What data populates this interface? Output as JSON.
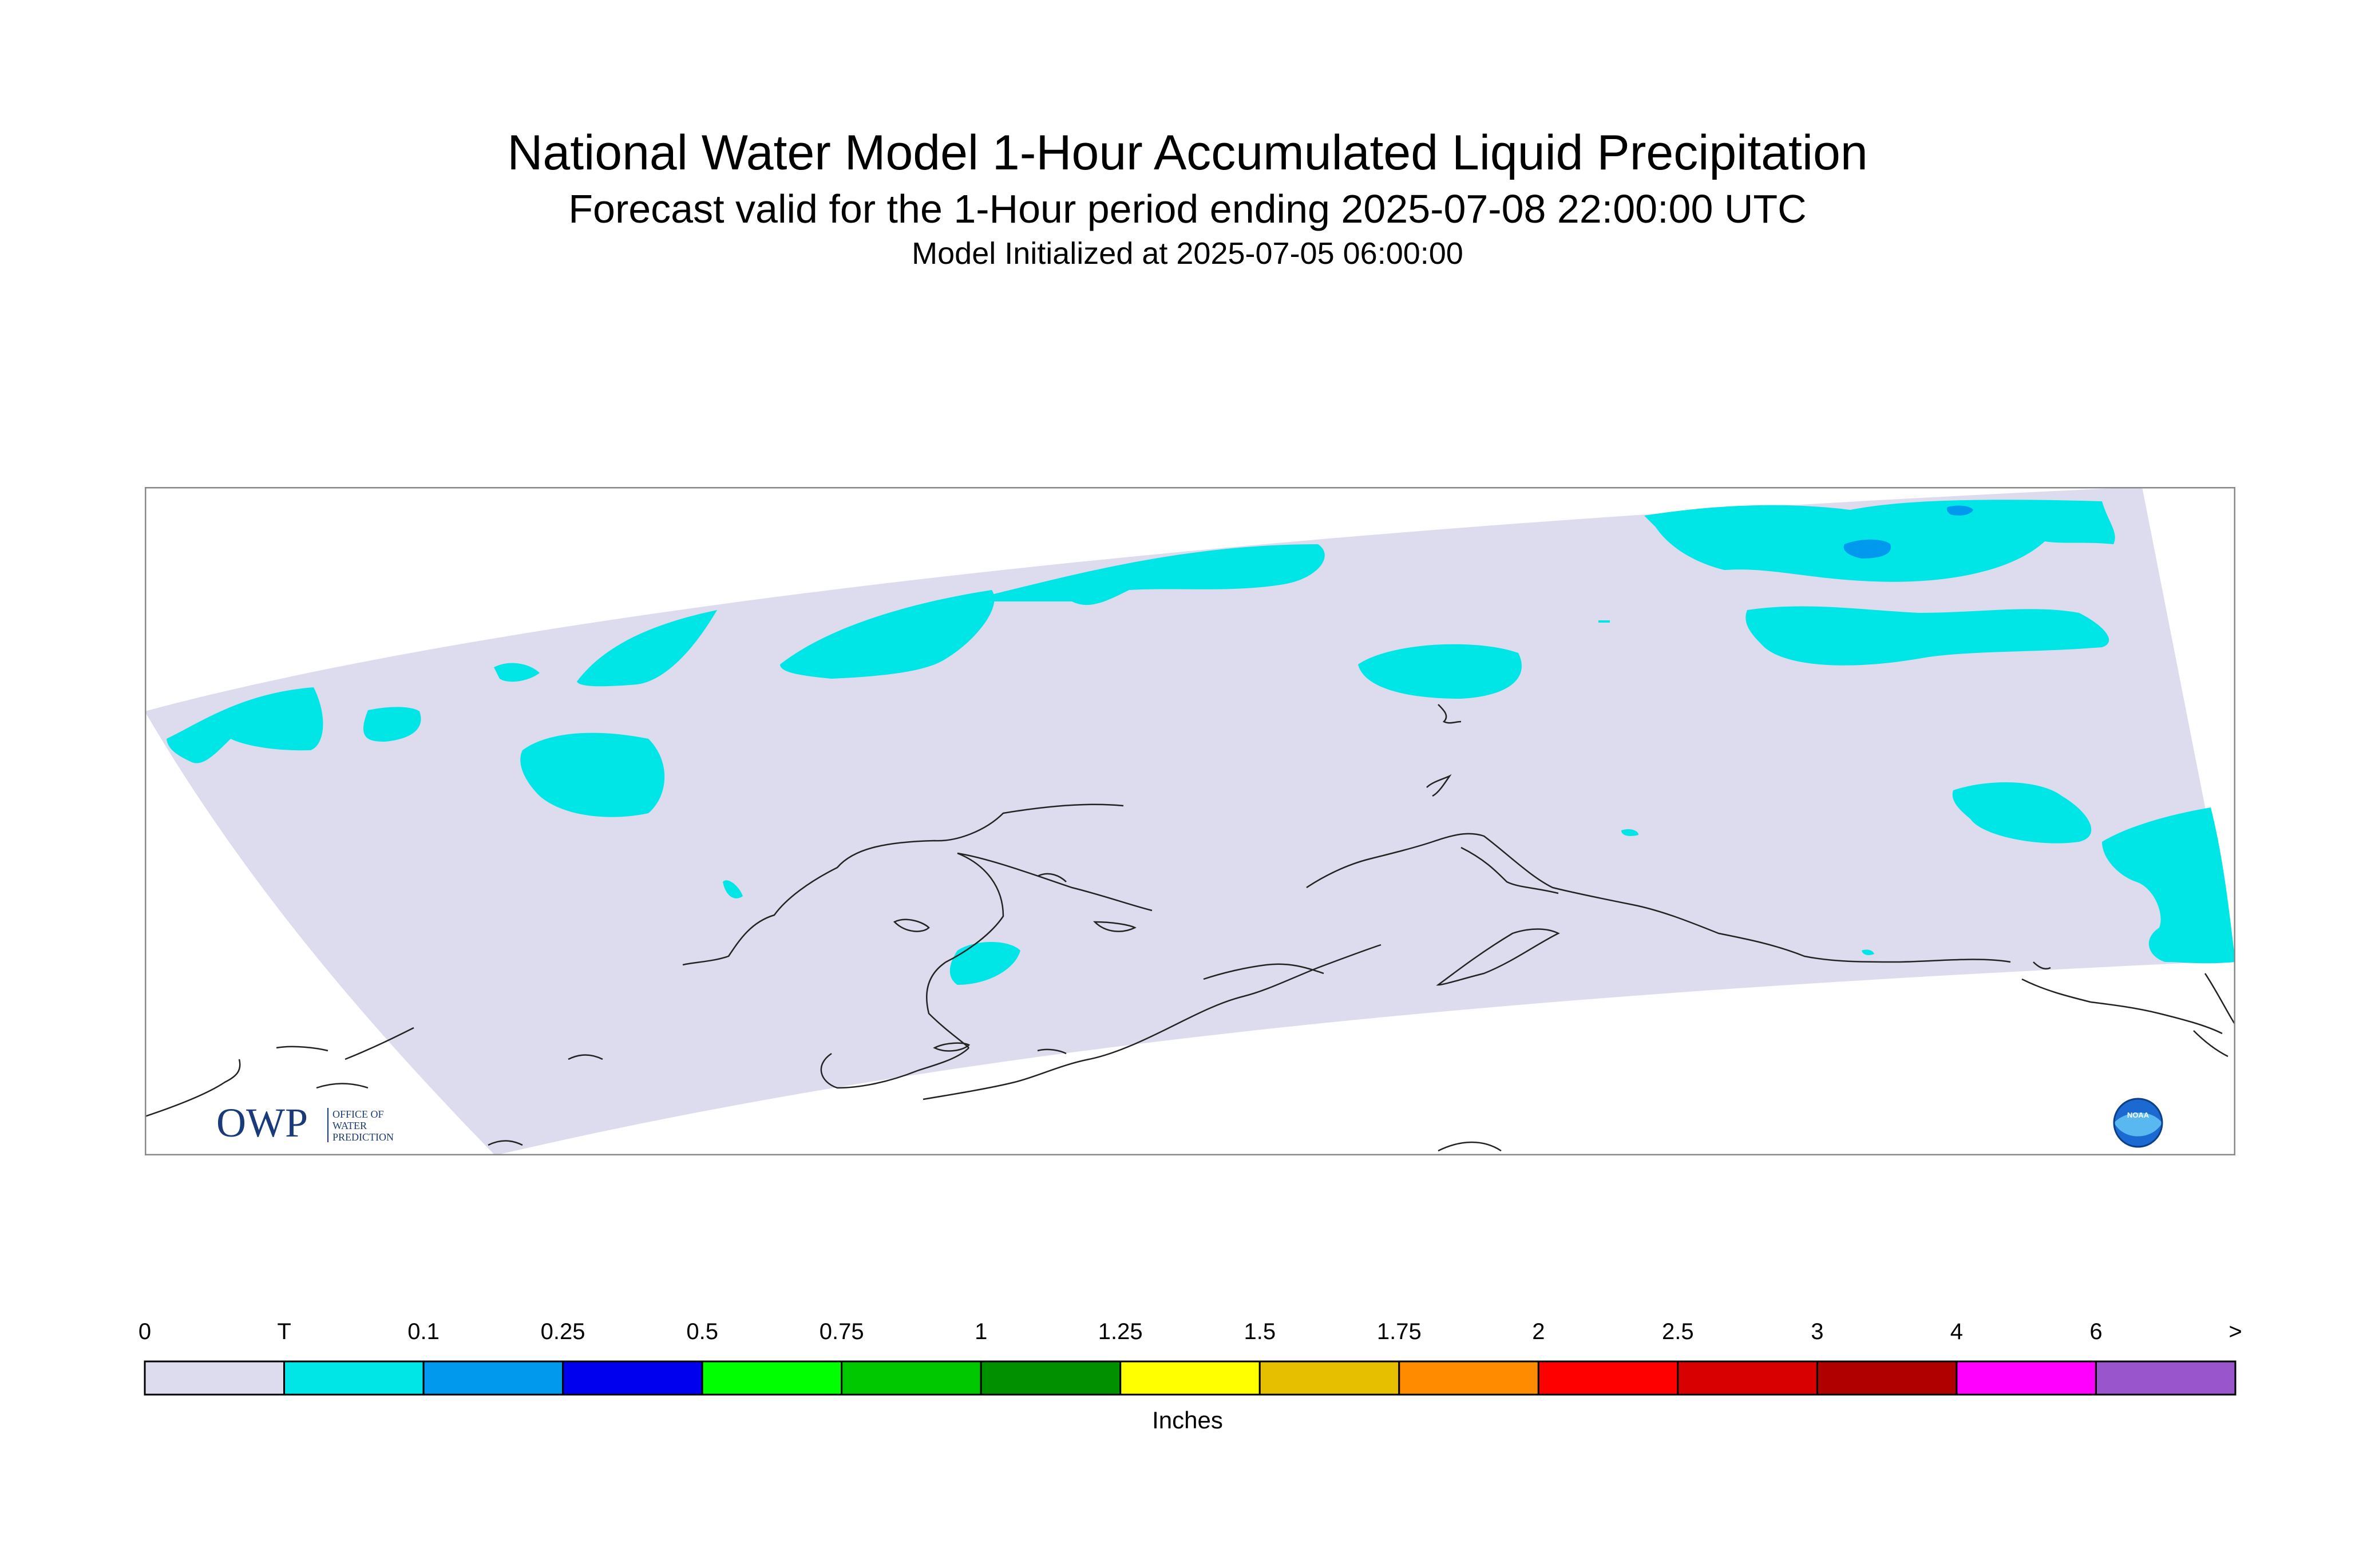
{
  "title": "National Water Model 1-Hour Accumulated Liquid Precipitation",
  "subtitle": "Forecast valid for the 1-Hour period ending 2025-07-08 22:00:00 UTC",
  "init_text": "Model Initialized at 2025-07-05 06:00:00",
  "logos": {
    "owp_text": "OWP",
    "owp_sub": [
      "OFFICE OF",
      "WATER",
      "PREDICTION"
    ],
    "noaa_text": "NOAA"
  },
  "colors": {
    "domain": "#dcdcee",
    "trace": "#00e5e5",
    "light_blue": "#0099ee",
    "border": "#888888"
  },
  "legend": {
    "units": "Inches",
    "labels": [
      "0",
      "T",
      "0.1",
      "0.25",
      "0.5",
      "0.75",
      "1",
      "1.25",
      "1.5",
      "1.75",
      "2",
      "2.5",
      "3",
      "4",
      "6",
      ">"
    ],
    "colors": [
      "#dcdcee",
      "#00e5e5",
      "#0099ee",
      "#0000ee",
      "#00ff00",
      "#00c800",
      "#009000",
      "#ffff00",
      "#e6c000",
      "#ff8c00",
      "#ff0000",
      "#d80000",
      "#b00000",
      "#ff00ff",
      "#9955cc"
    ]
  }
}
